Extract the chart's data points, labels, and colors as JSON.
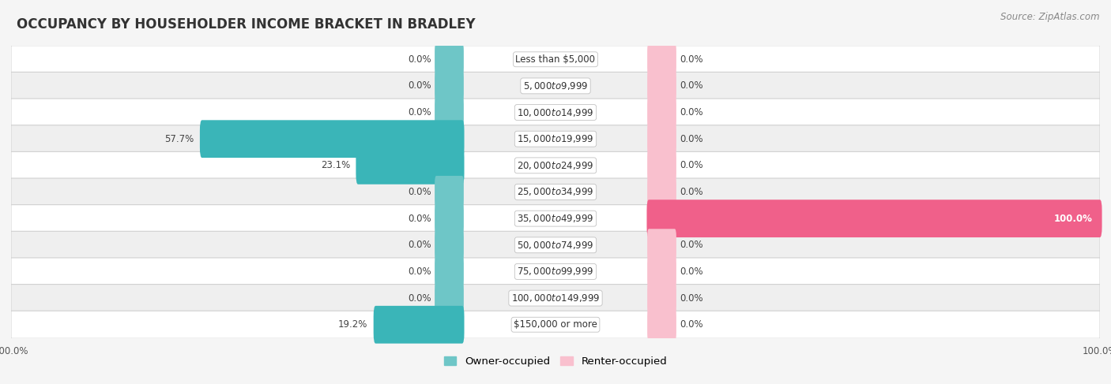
{
  "title": "OCCUPANCY BY HOUSEHOLDER INCOME BRACKET IN BRADLEY",
  "source": "Source: ZipAtlas.com",
  "categories": [
    "Less than $5,000",
    "$5,000 to $9,999",
    "$10,000 to $14,999",
    "$15,000 to $19,999",
    "$20,000 to $24,999",
    "$25,000 to $34,999",
    "$35,000 to $49,999",
    "$50,000 to $74,999",
    "$75,000 to $99,999",
    "$100,000 to $149,999",
    "$150,000 or more"
  ],
  "owner_values": [
    0.0,
    0.0,
    0.0,
    57.7,
    23.1,
    0.0,
    0.0,
    0.0,
    0.0,
    0.0,
    19.2
  ],
  "renter_values": [
    0.0,
    0.0,
    0.0,
    0.0,
    0.0,
    0.0,
    100.0,
    0.0,
    0.0,
    0.0,
    0.0
  ],
  "owner_color": "#6ec6c7",
  "owner_color_active": "#3ab5b8",
  "renter_color": "#f9c0ce",
  "renter_color_active": "#f0608a",
  "background_color": "#f5f5f5",
  "label_fontsize": 8.5,
  "title_fontsize": 12,
  "legend_fontsize": 9.5,
  "source_fontsize": 8.5,
  "axis_label_fontsize": 8.5,
  "bar_height": 0.62,
  "row_colors": [
    "#ffffff",
    "#efefef"
  ]
}
